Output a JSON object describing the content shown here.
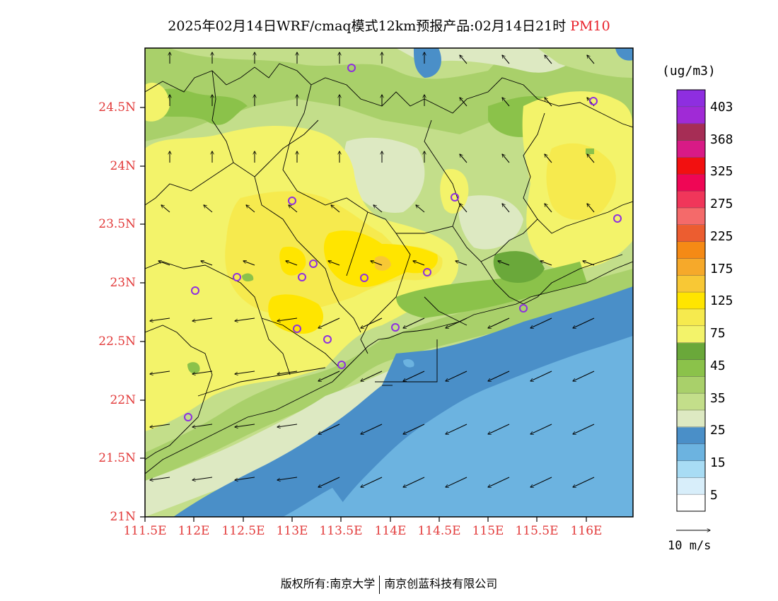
{
  "title": {
    "main": "2025年02月14日WRF/cmaq模式12km预报产品:02月14日21时",
    "pollutant": "PM10"
  },
  "axes": {
    "lat_labels": [
      "24.5N",
      "24N",
      "23.5N",
      "23N",
      "22.5N",
      "22N",
      "21.5N",
      "21N"
    ],
    "lon_labels": [
      "111.5E",
      "112E",
      "112.5E",
      "113E",
      "113.5E",
      "114E",
      "114.5E",
      "115E",
      "115.5E",
      "116E"
    ]
  },
  "colorbar": {
    "unit": "(ug/m3)",
    "labels": [
      "403",
      "368",
      "325",
      "275",
      "225",
      "175",
      "125",
      "75",
      "45",
      "35",
      "25",
      "15",
      "5"
    ],
    "colors": [
      "#ffffff",
      "#d8eefa",
      "#a8dcf4",
      "#6cb3e0",
      "#4a8fc8",
      "#dde9c2",
      "#c3de8a",
      "#a9d06a",
      "#8bc24a",
      "#6aa83a",
      "#f3f36a",
      "#f6ea4e",
      "#ffe500",
      "#f8c835",
      "#f6a92a",
      "#f58a15",
      "#ec5d30",
      "#f46a6a",
      "#f0365a",
      "#ef0655",
      "#f21010",
      "#d81a86",
      "#a62d55",
      "#a02ad6",
      "#8e2ee0"
    ]
  },
  "wind_reference": {
    "label": "10 m/s"
  },
  "footer": {
    "copyright": "版权所有:",
    "org1": "南京大学",
    "org2": "南京创蓝科技有限公司"
  }
}
